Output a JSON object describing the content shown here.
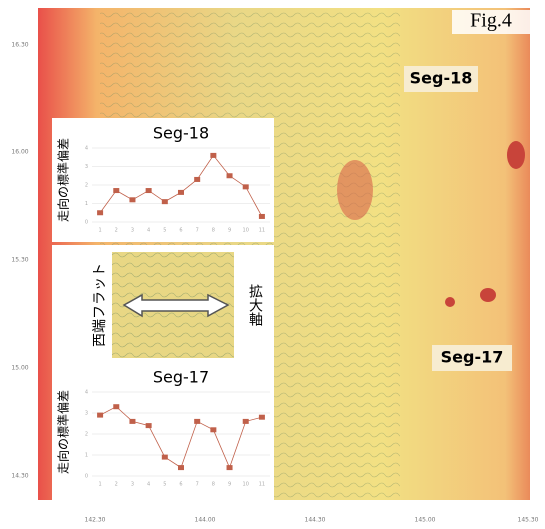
{
  "figure_label": "Fig.4",
  "map_labels": [
    "Seg-18",
    "Seg-17"
  ],
  "lat_labels": [
    "16.30",
    "16.00",
    "15.30",
    "15.00",
    "14.30"
  ],
  "lon_labels": [
    "142.30",
    "144.00",
    "144.30",
    "145.00",
    "145.30"
  ],
  "inset_labels": {
    "left": "西端フラット",
    "right": "拡大軸"
  },
  "chart_data": [
    {
      "type": "line",
      "title": "Seg-18",
      "y_label": "走向の標準偏差",
      "categories": [
        "1",
        "2",
        "3",
        "4",
        "5",
        "6",
        "7",
        "8",
        "9",
        "10",
        "11"
      ],
      "values": [
        0.5,
        1.7,
        1.2,
        1.7,
        1.1,
        1.6,
        2.3,
        3.6,
        2.5,
        1.9,
        0.3
      ],
      "color": "#c0604a",
      "ylim": [
        0,
        4
      ],
      "yticks": [
        0,
        1,
        2,
        3,
        4
      ],
      "grid": true
    },
    {
      "type": "line",
      "title": "Seg-17",
      "y_label": "走向の標準偏差",
      "categories": [
        "1",
        "2",
        "3",
        "4",
        "5",
        "6",
        "7",
        "8",
        "9",
        "10",
        "11"
      ],
      "values": [
        2.9,
        3.3,
        2.6,
        2.4,
        0.9,
        0.4,
        2.6,
        2.2,
        0.4,
        2.6,
        2.8
      ],
      "color": "#c0604a",
      "ylim": [
        0,
        4
      ],
      "yticks": [
        0,
        1,
        2,
        3,
        4
      ],
      "grid": true
    }
  ]
}
